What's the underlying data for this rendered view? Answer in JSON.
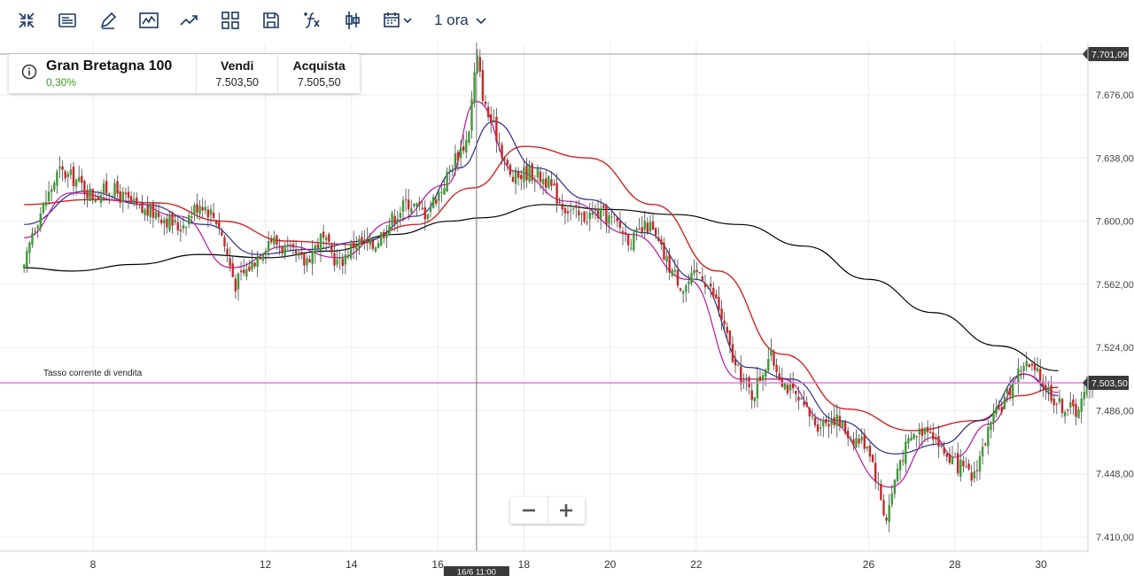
{
  "toolbar": {
    "buttons": [
      {
        "name": "collapse-icon"
      },
      {
        "name": "news-icon"
      },
      {
        "name": "draw-pencil-icon"
      },
      {
        "name": "line-chart-icon"
      },
      {
        "name": "trend-icon"
      },
      {
        "name": "layout-grid-icon"
      },
      {
        "name": "save-icon"
      },
      {
        "name": "indicators-fx-icon"
      },
      {
        "name": "candlestick-icon"
      },
      {
        "name": "calendar-icon"
      }
    ],
    "timeframe": "1 ora"
  },
  "instrument": {
    "name": "Gran Bretagna 100",
    "change": "0,30%",
    "sell_label": "Vendi",
    "sell_value": "7.503,50",
    "buy_label": "Acquista",
    "buy_value": "7.505,50"
  },
  "colors": {
    "up": "#3d9b35",
    "down": "#c62828",
    "sell_line": "#e879d6",
    "ma_black": "#000000",
    "ma_blue": "#2c2b8f",
    "ma_magenta": "#c0139a",
    "ma_red": "#d62222",
    "text_dark": "#1d3966"
  },
  "zoom": {
    "minus": "zoom-out",
    "plus": "zoom-in"
  },
  "chart_data": {
    "type": "candlestick",
    "instrument": "Gran Bretagna 100",
    "y_range": [
      7400,
      7705
    ],
    "y_ticks": [
      "7.410,00",
      "7.448,00",
      "7.486,00",
      "7.524,00",
      "7.562,00",
      "7.600,00",
      "7.638,00",
      "7.676,00"
    ],
    "y_tick_values": [
      7410,
      7448,
      7486,
      7524,
      7562,
      7600,
      7638,
      7676
    ],
    "x_ticks": [
      "8",
      "12",
      "14",
      "16",
      "18",
      "20",
      "22",
      "26",
      "28",
      "30"
    ],
    "x_tick_days": [
      8,
      12,
      14,
      16,
      18,
      20,
      22,
      26,
      28,
      30
    ],
    "x_range_days": [
      6.4,
      31.2
    ],
    "top_line": {
      "label": "7.701,09",
      "value": 7701.09
    },
    "sell_rate": {
      "label": "7.503,50",
      "value": 7503.5,
      "text": "Tasso corrente di vendita"
    },
    "crosshair": {
      "label": "16/6 11:00",
      "day": 16.9
    },
    "price_path": [
      [
        6.4,
        7570
      ],
      [
        6.6,
        7595
      ],
      [
        6.9,
        7612
      ],
      [
        7.2,
        7630
      ],
      [
        7.6,
        7625
      ],
      [
        8.0,
        7615
      ],
      [
        8.4,
        7620
      ],
      [
        8.8,
        7612
      ],
      [
        9.1,
        7606
      ],
      [
        9.5,
        7605
      ],
      [
        10.0,
        7596
      ],
      [
        10.5,
        7612
      ],
      [
        10.9,
        7600
      ],
      [
        11.3,
        7562
      ],
      [
        11.7,
        7575
      ],
      [
        12.1,
        7590
      ],
      [
        12.5,
        7582
      ],
      [
        12.9,
        7575
      ],
      [
        13.3,
        7590
      ],
      [
        13.7,
        7574
      ],
      [
        14.1,
        7588
      ],
      [
        14.5,
        7585
      ],
      [
        14.9,
        7600
      ],
      [
        15.3,
        7612
      ],
      [
        15.7,
        7605
      ],
      [
        16.1,
        7620
      ],
      [
        16.4,
        7638
      ],
      [
        16.7,
        7650
      ],
      [
        16.9,
        7700
      ],
      [
        17.1,
        7668
      ],
      [
        17.4,
        7650
      ],
      [
        17.7,
        7625
      ],
      [
        18.1,
        7630
      ],
      [
        18.5,
        7625
      ],
      [
        18.9,
        7610
      ],
      [
        19.3,
        7602
      ],
      [
        19.7,
        7605
      ],
      [
        20.1,
        7600
      ],
      [
        20.5,
        7588
      ],
      [
        20.9,
        7598
      ],
      [
        21.3,
        7576
      ],
      [
        21.7,
        7560
      ],
      [
        22.1,
        7570
      ],
      [
        22.5,
        7550
      ],
      [
        22.9,
        7512
      ],
      [
        23.3,
        7495
      ],
      [
        23.7,
        7520
      ],
      [
        24.0,
        7505
      ],
      [
        24.4,
        7490
      ],
      [
        24.8,
        7478
      ],
      [
        25.2,
        7482
      ],
      [
        25.6,
        7470
      ],
      [
        26.0,
        7466
      ],
      [
        26.4,
        7420
      ],
      [
        26.7,
        7455
      ],
      [
        27.0,
        7470
      ],
      [
        27.4,
        7478
      ],
      [
        27.7,
        7462
      ],
      [
        28.0,
        7455
      ],
      [
        28.4,
        7445
      ],
      [
        28.8,
        7475
      ],
      [
        29.2,
        7495
      ],
      [
        29.6,
        7515
      ],
      [
        30.0,
        7505
      ],
      [
        30.4,
        7490
      ],
      [
        30.8,
        7486
      ],
      [
        31.2,
        7503
      ]
    ],
    "ma_paths": {
      "black": [
        [
          6.4,
          7572
        ],
        [
          7.5,
          7570
        ],
        [
          9.0,
          7574
        ],
        [
          10.5,
          7580
        ],
        [
          12.0,
          7578
        ],
        [
          13.5,
          7582
        ],
        [
          15.0,
          7592
        ],
        [
          16.3,
          7600
        ],
        [
          17.0,
          7602
        ],
        [
          18.5,
          7610
        ],
        [
          20.0,
          7607
        ],
        [
          21.5,
          7604
        ],
        [
          23.0,
          7598
        ],
        [
          24.5,
          7585
        ],
        [
          26.0,
          7565
        ],
        [
          27.5,
          7545
        ],
        [
          29.0,
          7525
        ],
        [
          30.4,
          7510
        ]
      ],
      "red": [
        [
          6.4,
          7610
        ],
        [
          8.0,
          7613
        ],
        [
          9.5,
          7611
        ],
        [
          11.0,
          7600
        ],
        [
          12.5,
          7588
        ],
        [
          14.0,
          7586
        ],
        [
          15.5,
          7598
        ],
        [
          16.8,
          7620
        ],
        [
          18.0,
          7645
        ],
        [
          19.5,
          7638
        ],
        [
          21.0,
          7610
        ],
        [
          22.5,
          7570
        ],
        [
          24.0,
          7520
        ],
        [
          25.5,
          7487
        ],
        [
          27.0,
          7474
        ],
        [
          28.5,
          7480
        ],
        [
          29.5,
          7495
        ],
        [
          30.4,
          7500
        ]
      ],
      "magenta": [
        [
          6.4,
          7590
        ],
        [
          7.5,
          7617
        ],
        [
          8.8,
          7612
        ],
        [
          10.0,
          7603
        ],
        [
          11.2,
          7572
        ],
        [
          12.5,
          7585
        ],
        [
          13.7,
          7578
        ],
        [
          15.0,
          7600
        ],
        [
          16.2,
          7622
        ],
        [
          16.9,
          7672
        ],
        [
          17.8,
          7630
        ],
        [
          19.0,
          7612
        ],
        [
          20.5,
          7592
        ],
        [
          21.8,
          7565
        ],
        [
          23.0,
          7505
        ],
        [
          24.0,
          7505
        ],
        [
          25.0,
          7480
        ],
        [
          26.5,
          7440
        ],
        [
          27.5,
          7470
        ],
        [
          28.0,
          7458
        ],
        [
          28.8,
          7478
        ],
        [
          29.6,
          7508
        ],
        [
          30.4,
          7497
        ]
      ],
      "blue": [
        [
          6.4,
          7598
        ],
        [
          7.8,
          7618
        ],
        [
          9.2,
          7610
        ],
        [
          10.6,
          7598
        ],
        [
          11.8,
          7580
        ],
        [
          13.0,
          7583
        ],
        [
          14.3,
          7588
        ],
        [
          15.5,
          7603
        ],
        [
          16.5,
          7632
        ],
        [
          17.3,
          7660
        ],
        [
          18.3,
          7632
        ],
        [
          19.5,
          7613
        ],
        [
          20.8,
          7593
        ],
        [
          22.0,
          7565
        ],
        [
          23.2,
          7512
        ],
        [
          24.2,
          7505
        ],
        [
          25.3,
          7480
        ],
        [
          26.6,
          7460
        ],
        [
          27.7,
          7466
        ],
        [
          28.6,
          7480
        ],
        [
          29.6,
          7508
        ],
        [
          30.4,
          7495
        ]
      ]
    }
  }
}
